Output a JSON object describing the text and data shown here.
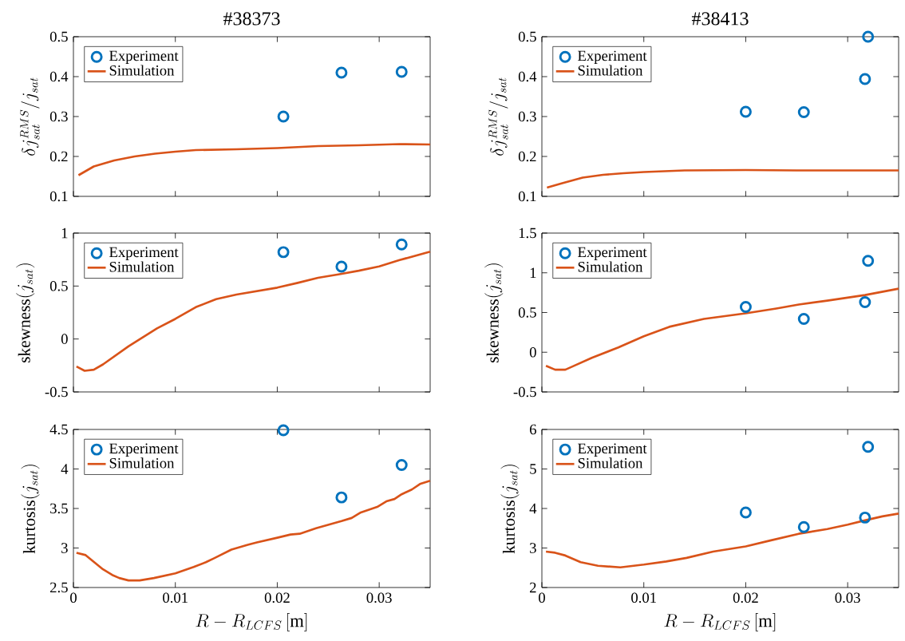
{
  "chart_data": [
    {
      "type": "line",
      "title": "#38373",
      "ylabel": "\\delta j_{sat}^{RMS}/j_{sat}",
      "xlim": [
        0,
        0.035
      ],
      "xticks": [
        0,
        0.01,
        0.02,
        0.03
      ],
      "ylim": [
        0.1,
        0.5
      ],
      "yticks": [
        0.1,
        0.2,
        0.3,
        0.4,
        0.5
      ],
      "tick_labels": "y",
      "legend": "top left",
      "series": [
        {
          "name": "Experiment",
          "type": "scatter",
          "marker": "circle",
          "color": "#0072bd",
          "x": [
            0.0206,
            0.0263,
            0.0322
          ],
          "values": [
            0.3,
            0.41,
            0.412
          ]
        },
        {
          "name": "Simulation",
          "type": "line",
          "color": "#d95319",
          "x": [
            0.0005,
            0.002,
            0.004,
            0.006,
            0.008,
            0.01,
            0.012,
            0.016,
            0.02,
            0.024,
            0.028,
            0.032,
            0.035
          ],
          "values": [
            0.153,
            0.175,
            0.19,
            0.2,
            0.207,
            0.212,
            0.216,
            0.218,
            0.221,
            0.226,
            0.228,
            0.231,
            0.23
          ]
        }
      ]
    },
    {
      "type": "line",
      "title": "#38413",
      "ylabel": "\\delta j_{sat}^{RMS}/j_{sat}",
      "xlim": [
        0,
        0.035
      ],
      "xticks": [
        0,
        0.01,
        0.02,
        0.03
      ],
      "ylim": [
        0.1,
        0.5
      ],
      "yticks": [
        0.1,
        0.2,
        0.3,
        0.4,
        0.5
      ],
      "tick_labels": "y",
      "legend": "top left",
      "series": [
        {
          "name": "Experiment",
          "type": "scatter",
          "marker": "circle",
          "color": "#0072bd",
          "x": [
            0.02,
            0.0257,
            0.0317,
            0.032
          ],
          "values": [
            0.312,
            0.311,
            0.394,
            0.5
          ]
        },
        {
          "name": "Simulation",
          "type": "line",
          "color": "#d95319",
          "x": [
            0.0005,
            0.002,
            0.004,
            0.006,
            0.008,
            0.01,
            0.014,
            0.02,
            0.025,
            0.03,
            0.035
          ],
          "values": [
            0.122,
            0.133,
            0.147,
            0.154,
            0.158,
            0.161,
            0.165,
            0.166,
            0.165,
            0.165,
            0.165
          ]
        }
      ]
    },
    {
      "type": "line",
      "ylabel": "\\mathrm{skewness}(j_{sat})",
      "xlim": [
        0,
        0.035
      ],
      "xticks": [
        0,
        0.01,
        0.02,
        0.03
      ],
      "ylim": [
        -0.5,
        1
      ],
      "yticks": [
        -0.5,
        0,
        0.5,
        1
      ],
      "tick_labels": "y",
      "legend": "top left",
      "series": [
        {
          "name": "Experiment",
          "type": "scatter",
          "marker": "circle",
          "color": "#0072bd",
          "x": [
            0.0206,
            0.0263,
            0.0322
          ],
          "values": [
            0.82,
            0.683,
            0.892
          ]
        },
        {
          "name": "Simulation",
          "type": "line",
          "color": "#d95319",
          "x": [
            0.0003,
            0.0011,
            0.002,
            0.0029,
            0.0054,
            0.0082,
            0.01,
            0.012,
            0.014,
            0.016,
            0.02,
            0.022,
            0.024,
            0.026,
            0.028,
            0.03,
            0.032,
            0.035
          ],
          "values": [
            -0.26,
            -0.3,
            -0.29,
            -0.24,
            -0.07,
            0.1,
            0.19,
            0.3,
            0.376,
            0.42,
            0.485,
            0.53,
            0.578,
            0.61,
            0.645,
            0.685,
            0.745,
            0.825
          ]
        }
      ]
    },
    {
      "type": "line",
      "ylabel": "\\mathrm{skewness}(j_{sat})",
      "xlim": [
        0,
        0.035
      ],
      "xticks": [
        0,
        0.01,
        0.02,
        0.03
      ],
      "ylim": [
        -0.5,
        1.5
      ],
      "yticks": [
        -0.5,
        0,
        0.5,
        1,
        1.5
      ],
      "tick_labels": "y",
      "legend": "top left",
      "series": [
        {
          "name": "Experiment",
          "type": "scatter",
          "marker": "circle",
          "color": "#0072bd",
          "x": [
            0.02,
            0.0257,
            0.0317,
            0.032
          ],
          "values": [
            0.57,
            0.42,
            0.63,
            1.15
          ]
        },
        {
          "name": "Simulation",
          "type": "line",
          "color": "#d95319",
          "x": [
            0.0004,
            0.0013,
            0.0023,
            0.003,
            0.0049,
            0.0075,
            0.01,
            0.0125,
            0.0159,
            0.02,
            0.023,
            0.0252,
            0.028,
            0.0317,
            0.035
          ],
          "values": [
            -0.17,
            -0.22,
            -0.22,
            -0.18,
            -0.07,
            0.06,
            0.2,
            0.32,
            0.42,
            0.49,
            0.55,
            0.6,
            0.65,
            0.72,
            0.8
          ]
        }
      ]
    },
    {
      "type": "line",
      "xlabel": "R-R_{LCFS}\\,[\\mathrm{m}]",
      "ylabel": "\\mathrm{kurtosis}(j_{sat})",
      "xlim": [
        0,
        0.035
      ],
      "xticks": [
        0,
        0.01,
        0.02,
        0.03
      ],
      "ylim": [
        2.5,
        4.5
      ],
      "yticks": [
        2.5,
        3,
        3.5,
        4,
        4.5
      ],
      "legend": "top left",
      "series": [
        {
          "name": "Experiment",
          "type": "scatter",
          "marker": "circle",
          "color": "#0072bd",
          "x": [
            0.0206,
            0.0263,
            0.0322
          ],
          "values": [
            4.49,
            3.64,
            4.05
          ]
        },
        {
          "name": "Simulation",
          "type": "line",
          "color": "#d95319",
          "x": [
            0.0003,
            0.0012,
            0.0029,
            0.0038,
            0.0045,
            0.0054,
            0.0065,
            0.0079,
            0.01,
            0.0118,
            0.013,
            0.0138,
            0.0155,
            0.0171,
            0.018,
            0.02,
            0.0213,
            0.0222,
            0.0238,
            0.0263,
            0.0273,
            0.0282,
            0.0298,
            0.0307,
            0.0315,
            0.0322,
            0.0332,
            0.034,
            0.035
          ],
          "values": [
            2.94,
            2.91,
            2.73,
            2.66,
            2.62,
            2.59,
            2.59,
            2.62,
            2.68,
            2.76,
            2.82,
            2.87,
            2.98,
            3.04,
            3.07,
            3.13,
            3.17,
            3.18,
            3.25,
            3.34,
            3.38,
            3.45,
            3.52,
            3.59,
            3.62,
            3.68,
            3.74,
            3.81,
            3.85
          ]
        }
      ]
    },
    {
      "type": "line",
      "xlabel": "R-R_{LCFS}\\,[\\mathrm{m}]",
      "ylabel": "\\mathrm{kurtosis}(j_{sat})",
      "xlim": [
        0,
        0.035
      ],
      "xticks": [
        0,
        0.01,
        0.02,
        0.03
      ],
      "ylim": [
        2,
        6
      ],
      "yticks": [
        2,
        3,
        4,
        5,
        6
      ],
      "legend": "top left",
      "series": [
        {
          "name": "Experiment",
          "type": "scatter",
          "marker": "circle",
          "color": "#0072bd",
          "x": [
            0.02,
            0.0257,
            0.0317,
            0.032
          ],
          "values": [
            3.9,
            3.53,
            3.77,
            5.56
          ]
        },
        {
          "name": "Simulation",
          "type": "line",
          "color": "#d95319",
          "x": [
            0.0004,
            0.0013,
            0.0023,
            0.0038,
            0.0055,
            0.0077,
            0.01,
            0.0122,
            0.0142,
            0.0168,
            0.02,
            0.0224,
            0.0252,
            0.028,
            0.03,
            0.0317,
            0.0334,
            0.035
          ],
          "values": [
            2.91,
            2.88,
            2.81,
            2.64,
            2.55,
            2.51,
            2.58,
            2.66,
            2.75,
            2.91,
            3.04,
            3.19,
            3.36,
            3.48,
            3.59,
            3.7,
            3.8,
            3.87
          ]
        }
      ]
    }
  ]
}
